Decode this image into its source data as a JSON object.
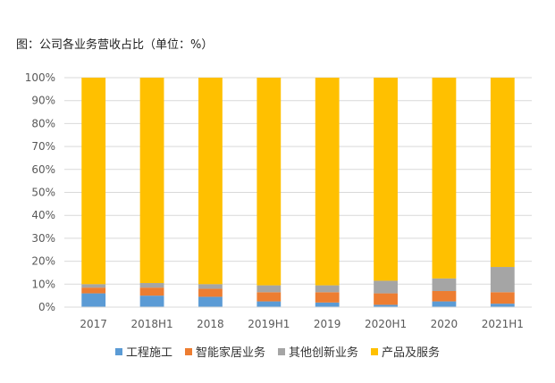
{
  "title": "图：公司各业务营收占比（单位：%）",
  "chart_data": {
    "type": "bar",
    "stacked": true,
    "categories": [
      "2017",
      "2018H1",
      "2018",
      "2019H1",
      "2019",
      "2020H1",
      "2020",
      "2021H1"
    ],
    "series": [
      {
        "name": "工程施工",
        "color": "#5B9BD5",
        "values": [
          6,
          5,
          4.5,
          2.5,
          2,
          1,
          2.5,
          1.5
        ]
      },
      {
        "name": "智能家居业务",
        "color": "#ED7D31",
        "values": [
          2.5,
          3.5,
          3.5,
          4,
          4.5,
          5,
          4.5,
          5
        ]
      },
      {
        "name": "其他创新业务",
        "color": "#A5A5A5",
        "values": [
          1.5,
          2,
          2,
          3,
          3,
          5.5,
          5.5,
          11
        ]
      },
      {
        "name": "产品及服务",
        "color": "#FFC000",
        "values": [
          90,
          89.5,
          90,
          90.5,
          90.5,
          88.5,
          87.5,
          82.5
        ]
      }
    ],
    "y_ticks": [
      "0%",
      "10%",
      "20%",
      "30%",
      "40%",
      "50%",
      "60%",
      "70%",
      "80%",
      "90%",
      "100%"
    ],
    "ylim": [
      0,
      100
    ],
    "grid": true,
    "legend_position": "bottom"
  }
}
